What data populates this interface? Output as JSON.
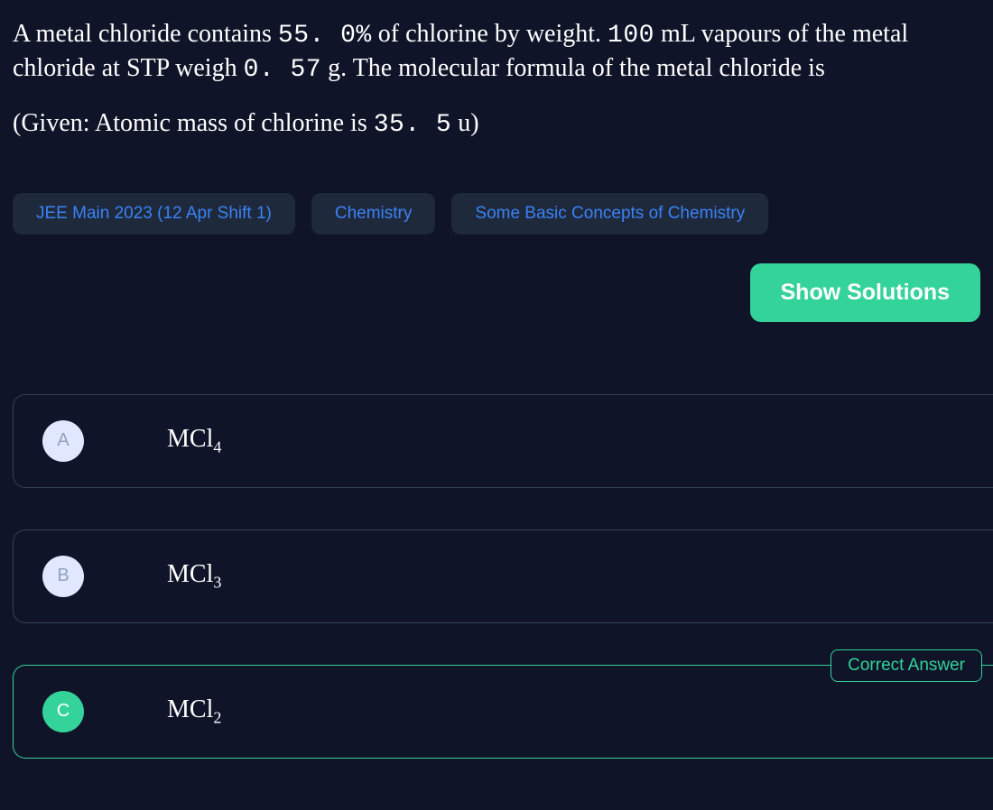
{
  "question": {
    "line1_pre": "A metal chloride contains ",
    "pct": "55. 0%",
    "line1_mid": " of chlorine by weight. ",
    "vol": "100",
    "vol_unit": " mL",
    "line1_post": " vapours of the metal chloride at STP weigh ",
    "mass": "0. 57",
    "mass_unit": " g",
    "line1_end": ". The molecular formula of the metal chloride is",
    "given_pre": "(Given: Atomic mass of chlorine is ",
    "given_val": "35. 5",
    "given_unit": " u",
    "given_post": ")"
  },
  "tags": {
    "exam": "JEE Main 2023 (12 Apr Shift 1)",
    "subject": "Chemistry",
    "topic": "Some Basic Concepts of Chemistry"
  },
  "buttons": {
    "show_solutions": "Show Solutions"
  },
  "options": {
    "a": {
      "letter": "A",
      "base": "MCl",
      "sub": "4"
    },
    "b": {
      "letter": "B",
      "base": "MCl",
      "sub": "3"
    },
    "c": {
      "letter": "C",
      "base": "MCl",
      "sub": "2",
      "badge": "Correct Answer"
    }
  },
  "colors": {
    "background": "#0f1429",
    "text": "#ffffff",
    "tag_bg": "#1e293b",
    "tag_text": "#3b82f6",
    "accent_green": "#34d399",
    "option_border": "#334155",
    "letter_bg": "#e0e7ff",
    "letter_text": "#94a3b8"
  },
  "typography": {
    "question_fontsize": 28,
    "tag_fontsize": 19,
    "button_fontsize": 25,
    "option_formula_fontsize": 28,
    "badge_fontsize": 19
  }
}
